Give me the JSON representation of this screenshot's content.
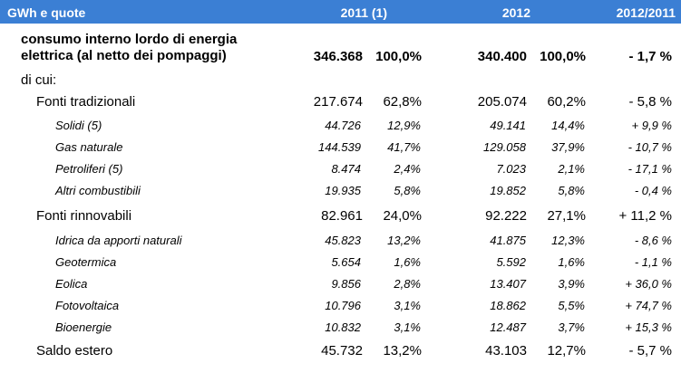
{
  "header": {
    "unit": "GWh e quote",
    "col_2011": "2011  (1)",
    "col_2012": "2012",
    "col_ratio": "2012/2011"
  },
  "total": {
    "label_line1": "consumo interno lordo di energia",
    "label_line2": "elettrica (al netto dei pompaggi)",
    "v2011": "346.368",
    "p2011": "100,0%",
    "v2012": "340.400",
    "p2012": "100,0%",
    "delta": "- 1,7 %"
  },
  "dicui": "di cui:",
  "rows": [
    {
      "label": "Fonti tradizionali",
      "v2011": "217.674",
      "p2011": "62,8%",
      "v2012": "205.074",
      "p2012": "60,2%",
      "delta": "- 5,8 %"
    },
    {
      "label": "Solidi (5)",
      "v2011": "44.726",
      "p2011": "12,9%",
      "v2012": "49.141",
      "p2012": "14,4%",
      "delta": "+ 9,9 %"
    },
    {
      "label": "Gas naturale",
      "v2011": "144.539",
      "p2011": "41,7%",
      "v2012": "129.058",
      "p2012": "37,9%",
      "delta": "- 10,7 %"
    },
    {
      "label": "Petroliferi (5)",
      "v2011": "8.474",
      "p2011": "2,4%",
      "v2012": "7.023",
      "p2012": "2,1%",
      "delta": "- 17,1 %"
    },
    {
      "label": "Altri combustibili",
      "v2011": "19.935",
      "p2011": "5,8%",
      "v2012": "19.852",
      "p2012": "5,8%",
      "delta": "- 0,4 %"
    },
    {
      "label": "Fonti rinnovabili",
      "v2011": "82.961",
      "p2011": "24,0%",
      "v2012": "92.222",
      "p2012": "27,1%",
      "delta": "+ 11,2 %"
    },
    {
      "label": "Idrica da apporti naturali",
      "v2011": "45.823",
      "p2011": "13,2%",
      "v2012": "41.875",
      "p2012": "12,3%",
      "delta": "- 8,6 %"
    },
    {
      "label": "Geotermica",
      "v2011": "5.654",
      "p2011": "1,6%",
      "v2012": "5.592",
      "p2012": "1,6%",
      "delta": "- 1,1 %"
    },
    {
      "label": "Eolica",
      "v2011": "9.856",
      "p2011": "2,8%",
      "v2012": "13.407",
      "p2012": "3,9%",
      "delta": "+ 36,0 %"
    },
    {
      "label": "Fotovoltaica",
      "v2011": "10.796",
      "p2011": "3,1%",
      "v2012": "18.862",
      "p2012": "5,5%",
      "delta": "+ 74,7 %"
    },
    {
      "label": "Bioenergie",
      "v2011": "10.832",
      "p2011": "3,1%",
      "v2012": "12.487",
      "p2012": "3,7%",
      "delta": "+ 15,3 %"
    },
    {
      "label": "Saldo estero",
      "v2011": "45.732",
      "p2011": "13,2%",
      "v2012": "43.103",
      "p2012": "12,7%",
      "delta": "- 5,7 %"
    }
  ],
  "colors": {
    "header_bg": "#3b7fd4",
    "header_text": "#ffffff"
  }
}
